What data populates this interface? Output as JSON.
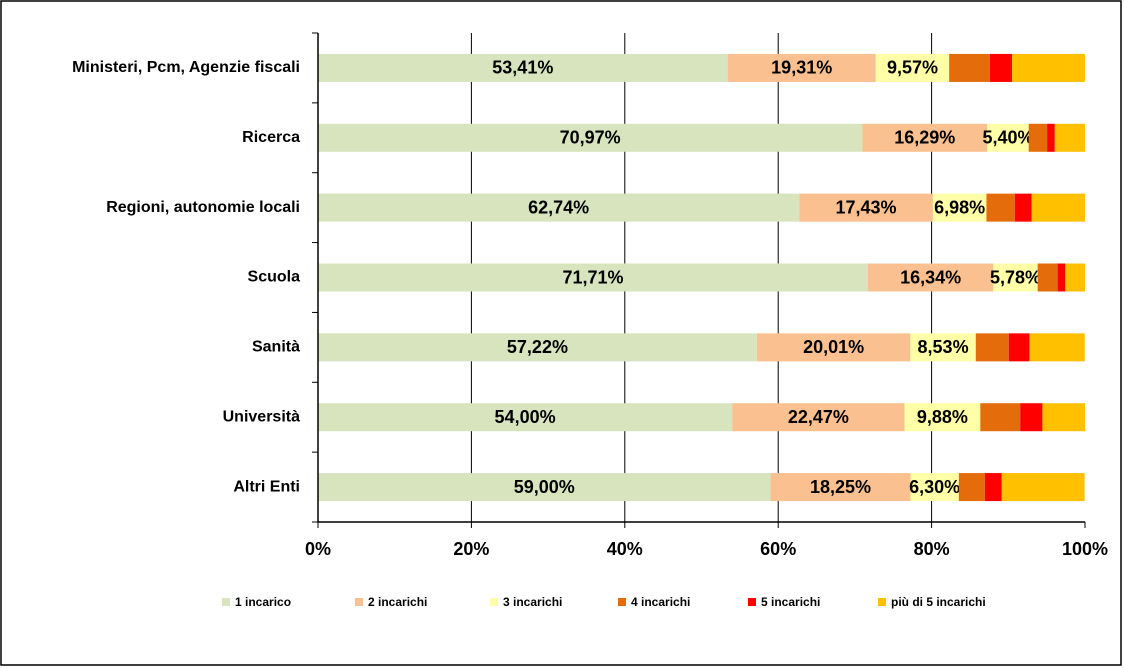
{
  "chart_data": {
    "type": "stacked_bar_horizontal",
    "categories": [
      "Ministeri, Pcm, Agenzie fiscali",
      "Ricerca",
      "Regioni, autonomie locali",
      "Scuola",
      "Sanità",
      "Università",
      "Altri Enti"
    ],
    "series": [
      {
        "name": "1 incarico",
        "color": "#d7e4bd",
        "values": [
          53.41,
          70.97,
          62.74,
          71.71,
          57.22,
          54.0,
          59.0
        ],
        "value_labels": [
          "53,41%",
          "70,97%",
          "62,74%",
          "71,71%",
          "57,22%",
          "54,00%",
          "59,00%"
        ]
      },
      {
        "name": "2 incarichi",
        "color": "#fac090",
        "values": [
          19.31,
          16.29,
          17.43,
          16.34,
          20.01,
          22.47,
          18.25
        ],
        "value_labels": [
          "19,31%",
          "16,29%",
          "17,43%",
          "16,34%",
          "20,01%",
          "22,47%",
          "18,25%"
        ]
      },
      {
        "name": "3 incarichi",
        "color": "#ffffa8",
        "values": [
          9.57,
          5.4,
          6.98,
          5.78,
          8.53,
          9.88,
          6.3
        ],
        "value_labels": [
          "9,57%",
          "5,40%",
          "6,98%",
          "5,78%",
          "8,53%",
          "9,88%",
          "6,30%"
        ]
      },
      {
        "name": "4 incarichi",
        "color": "#e46c0a",
        "values": [
          5.3,
          2.4,
          3.7,
          2.6,
          4.3,
          5.2,
          3.4
        ]
      },
      {
        "name": "5 incarichi",
        "color": "#ff0000",
        "values": [
          2.9,
          1.0,
          2.2,
          1.0,
          2.7,
          2.9,
          2.2
        ]
      },
      {
        "name": "più di 5 incarichi",
        "color": "#ffc000",
        "values": [
          9.51,
          3.94,
          6.95,
          2.57,
          7.21,
          5.55,
          10.8
        ]
      }
    ],
    "xlim": [
      0,
      100
    ],
    "xticks": [
      {
        "value": 0,
        "label": "0%"
      },
      {
        "value": 20,
        "label": "20%"
      },
      {
        "value": 40,
        "label": "40%"
      },
      {
        "value": 60,
        "label": "60%"
      },
      {
        "value": 80,
        "label": "80%"
      },
      {
        "value": 100,
        "label": "100%"
      }
    ],
    "grid": true,
    "legend": "bottom"
  }
}
